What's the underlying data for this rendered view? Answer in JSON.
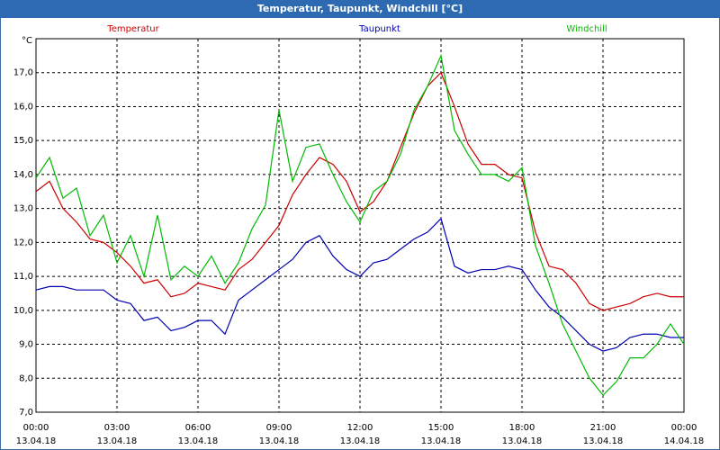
{
  "chart_data": {
    "type": "line",
    "title": "Temperatur, Taupunkt, Windchill [°C]",
    "y_unit": "°C",
    "x": [
      0,
      0.5,
      1,
      1.5,
      2,
      2.5,
      3,
      3.5,
      4,
      4.5,
      5,
      5.5,
      6,
      6.5,
      7,
      7.5,
      8,
      8.5,
      9,
      9.5,
      10,
      10.5,
      11,
      11.5,
      12,
      12.5,
      13,
      13.5,
      14,
      14.5,
      15,
      15.5,
      16,
      16.5,
      17,
      17.5,
      18,
      18.5,
      19,
      19.5,
      20,
      20.5,
      21,
      21.5,
      22,
      22.5,
      23,
      23.5,
      24
    ],
    "series": [
      {
        "name": "Temperatur",
        "color": "#cc0000",
        "values": [
          13.5,
          13.8,
          13.0,
          12.6,
          12.1,
          12.0,
          11.7,
          11.3,
          10.8,
          10.9,
          10.4,
          10.5,
          10.8,
          10.7,
          10.6,
          11.2,
          11.5,
          12.0,
          12.5,
          13.4,
          14.0,
          14.5,
          14.3,
          13.8,
          12.9,
          13.2,
          13.8,
          14.8,
          15.8,
          16.6,
          17.0,
          16.0,
          14.9,
          14.3,
          14.3,
          14.0,
          13.9,
          12.3,
          11.3,
          11.2,
          10.8,
          10.2,
          10.0,
          10.1,
          10.2,
          10.4,
          10.5,
          10.4,
          10.4
        ]
      },
      {
        "name": "Taupunkt",
        "color": "#0000b0",
        "values": [
          10.6,
          10.7,
          10.7,
          10.6,
          10.6,
          10.6,
          10.3,
          10.2,
          9.7,
          9.8,
          9.4,
          9.5,
          9.7,
          9.7,
          9.3,
          10.3,
          10.6,
          10.9,
          11.2,
          11.5,
          12.0,
          12.2,
          11.6,
          11.2,
          11.0,
          11.4,
          11.5,
          11.8,
          12.1,
          12.3,
          12.7,
          11.3,
          11.1,
          11.2,
          11.2,
          11.3,
          11.2,
          10.6,
          10.1,
          9.8,
          9.4,
          9.0,
          8.8,
          8.9,
          9.2,
          9.3,
          9.3,
          9.2,
          9.2
        ]
      },
      {
        "name": "Windchill",
        "color": "#00bb00",
        "values": [
          13.9,
          14.5,
          13.3,
          13.6,
          12.2,
          12.8,
          11.4,
          12.2,
          11.0,
          12.8,
          10.9,
          11.3,
          11.0,
          11.6,
          10.8,
          11.4,
          12.4,
          13.1,
          15.9,
          13.8,
          14.8,
          14.9,
          14.0,
          13.2,
          12.6,
          13.5,
          13.8,
          14.6,
          15.9,
          16.6,
          17.5,
          15.3,
          14.6,
          14.0,
          14.0,
          13.8,
          14.2,
          11.9,
          10.8,
          9.6,
          8.8,
          8.0,
          7.5,
          7.9,
          8.6,
          8.6,
          9.0,
          9.6,
          9.0
        ]
      }
    ],
    "xlim": [
      0,
      24
    ],
    "xticks": [
      {
        "value": 0,
        "label": "00:00",
        "date": "13.04.18"
      },
      {
        "value": 3,
        "label": "03:00",
        "date": "13.04.18"
      },
      {
        "value": 6,
        "label": "06:00",
        "date": "13.04.18"
      },
      {
        "value": 9,
        "label": "09:00",
        "date": "13.04.18"
      },
      {
        "value": 12,
        "label": "12:00",
        "date": "13.04.18"
      },
      {
        "value": 15,
        "label": "15:00",
        "date": "13.04.18"
      },
      {
        "value": 18,
        "label": "18:00",
        "date": "13.04.18"
      },
      {
        "value": 21,
        "label": "21:00",
        "date": "13.04.18"
      },
      {
        "value": 24,
        "label": "00:00",
        "date": "14.04.18"
      }
    ],
    "ylim": [
      7,
      18
    ],
    "yticks": [
      {
        "value": 7,
        "label": "7,0"
      },
      {
        "value": 8,
        "label": "8,0"
      },
      {
        "value": 9,
        "label": "9,0"
      },
      {
        "value": 10,
        "label": "10,0"
      },
      {
        "value": 11,
        "label": "11,0"
      },
      {
        "value": 12,
        "label": "12,0"
      },
      {
        "value": 13,
        "label": "13,0"
      },
      {
        "value": 14,
        "label": "14,0"
      },
      {
        "value": 15,
        "label": "15,0"
      },
      {
        "value": 16,
        "label": "16,0"
      },
      {
        "value": 17,
        "label": "17,0"
      }
    ],
    "grid": true
  }
}
